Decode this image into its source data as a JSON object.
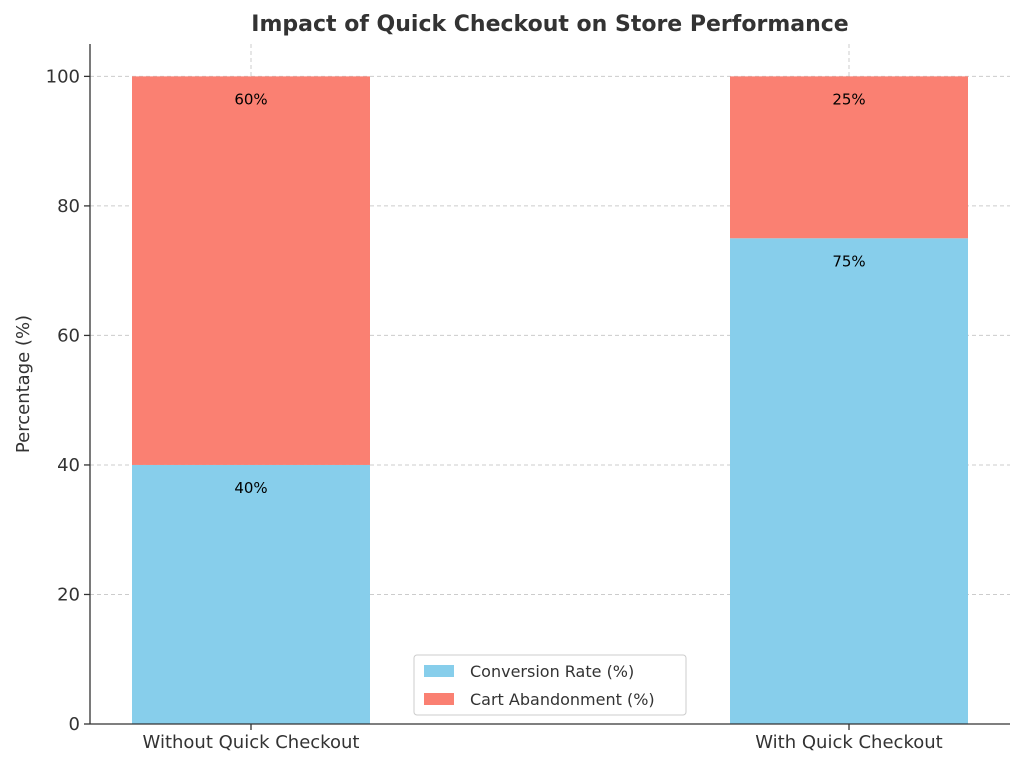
{
  "chart_data": {
    "type": "bar",
    "stacked": true,
    "title": "Impact of Quick Checkout on Store Performance",
    "xlabel": "",
    "ylabel": "Percentage (%)",
    "ylim": [
      0,
      105
    ],
    "yticks": [
      0,
      20,
      40,
      60,
      80,
      100
    ],
    "categories": [
      "Without Quick Checkout",
      "With Quick Checkout"
    ],
    "series": [
      {
        "name": "Conversion Rate (%)",
        "values": [
          40,
          75
        ],
        "labels": [
          "40%",
          "75%"
        ],
        "color": "#87CEEB"
      },
      {
        "name": "Cart Abandonment (%)",
        "values": [
          60,
          25
        ],
        "labels": [
          "60%",
          "25%"
        ],
        "color": "#FA8072"
      }
    ],
    "grid": true,
    "legend_position": "bottom-center"
  }
}
